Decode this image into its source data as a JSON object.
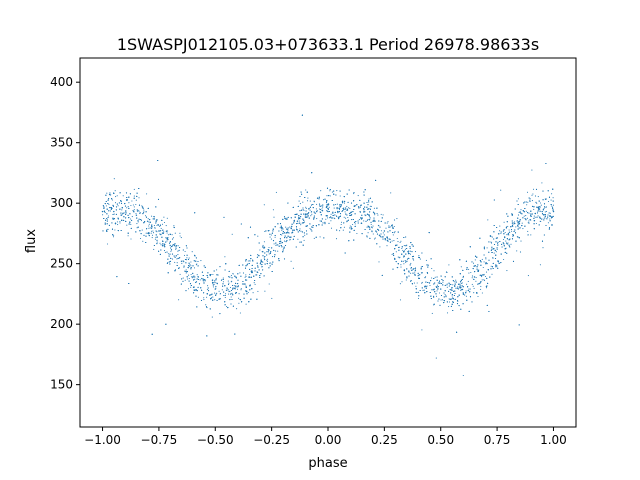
{
  "chart_data": {
    "type": "scatter",
    "title": "1SWASPJ012105.03+073633.1 Period 26978.98633s",
    "xlabel": "phase",
    "ylabel": "flux",
    "xlim": [
      -1.1,
      1.1
    ],
    "ylim": [
      115,
      420
    ],
    "x_ticks": [
      -1.0,
      -0.75,
      -0.5,
      -0.25,
      0.0,
      0.25,
      0.5,
      0.75,
      1.0
    ],
    "x_tick_labels": [
      "−1.00",
      "−0.75",
      "−0.50",
      "−0.25",
      "0.00",
      "0.25",
      "0.50",
      "0.75",
      "1.00"
    ],
    "y_ticks": [
      150,
      200,
      250,
      300,
      350,
      400
    ],
    "y_tick_labels": [
      "150",
      "200",
      "250",
      "300",
      "350",
      "400"
    ],
    "grid": false,
    "marker_color": "#1f77b4",
    "series": [
      {
        "x": [
          -1.0,
          -0.95,
          -0.9,
          -0.85,
          -0.8,
          -0.75,
          -0.7,
          -0.65,
          -0.6,
          -0.55,
          -0.5,
          -0.45,
          -0.4,
          -0.35,
          -0.3,
          -0.25,
          -0.2,
          -0.15,
          -0.1,
          -0.05,
          0.0,
          0.05,
          0.1,
          0.15,
          0.2,
          0.25,
          0.3,
          0.35,
          0.4,
          0.45,
          0.5,
          0.55,
          0.6,
          0.65,
          0.7,
          0.75,
          0.8,
          0.85,
          0.9,
          0.95,
          1.0
        ],
        "y": [
          293,
          293,
          292,
          290,
          285,
          277,
          265,
          252,
          242,
          234,
          229,
          228,
          231,
          239,
          250,
          263,
          275,
          285,
          291,
          293,
          293,
          293,
          292,
          290,
          285,
          277,
          265,
          252,
          242,
          234,
          229,
          228,
          231,
          239,
          250,
          263,
          275,
          285,
          291,
          293,
          293
        ]
      }
    ]
  }
}
